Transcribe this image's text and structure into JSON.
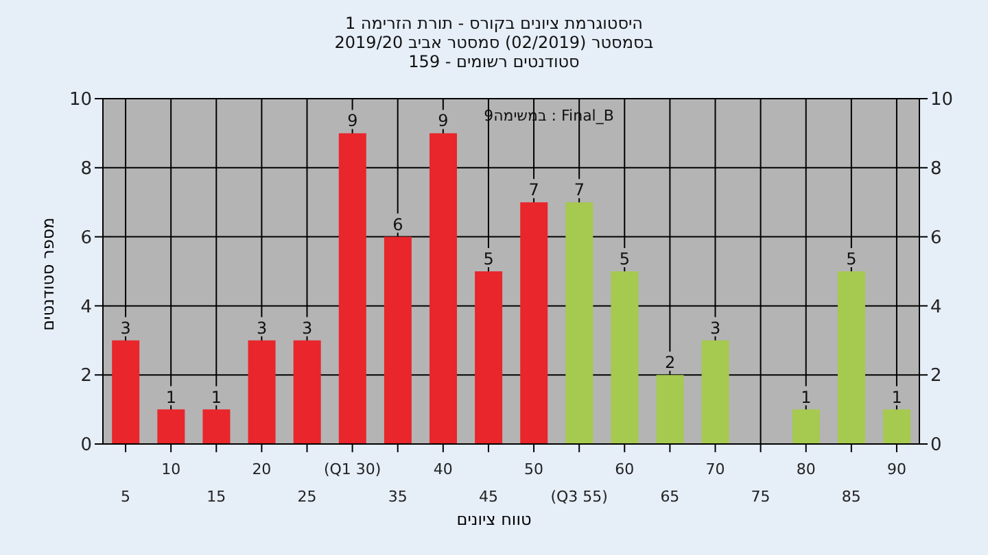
{
  "chart_data": {
    "type": "bar",
    "title": "היסטוגרמת ציונים בקורס - תורת הזרימה 1",
    "subtitle": "בסמסטר (02/2019) סמסטר אביב 2019/20\nסטודנטים רשומים - 159",
    "xlabel": "טווח ציונים",
    "ylabel": "מספר סטודנטים",
    "categories": [
      "5",
      "10",
      "15",
      "20",
      "25",
      "(Q1 30)",
      "35",
      "40",
      "45",
      "50",
      "(Q3 55)",
      "60",
      "65",
      "70",
      "75",
      "80",
      "85",
      "90"
    ],
    "series": [
      {
        "colors": [
          "#e8262b",
          "#e8262b",
          "#e8262b",
          "#e8262b",
          "#e8262b",
          "#e8262b",
          "#e8262b",
          "#e8262b",
          "#e8262b",
          "#e8262b",
          "#a6c94f",
          "#a6c94f",
          "#a6c94f",
          "#a6c94f",
          "#a6c94f",
          "#a6c94f",
          "#a6c94f",
          "#a6c94f"
        ],
        "values": [
          3,
          1,
          1,
          3,
          3,
          9,
          6,
          9,
          5,
          7,
          7,
          5,
          2,
          3,
          null,
          1,
          5,
          1
        ]
      }
    ],
    "data_labels": true,
    "annotations": [
      "9במשימה : Final_B"
    ],
    "ylim": [
      0,
      10
    ],
    "yticks": [
      0,
      2,
      4,
      6,
      8,
      10
    ],
    "y2lim": [
      0,
      10
    ],
    "y2ticks": [
      0,
      2,
      4,
      6,
      8,
      10
    ],
    "grid": true,
    "legend": false
  }
}
